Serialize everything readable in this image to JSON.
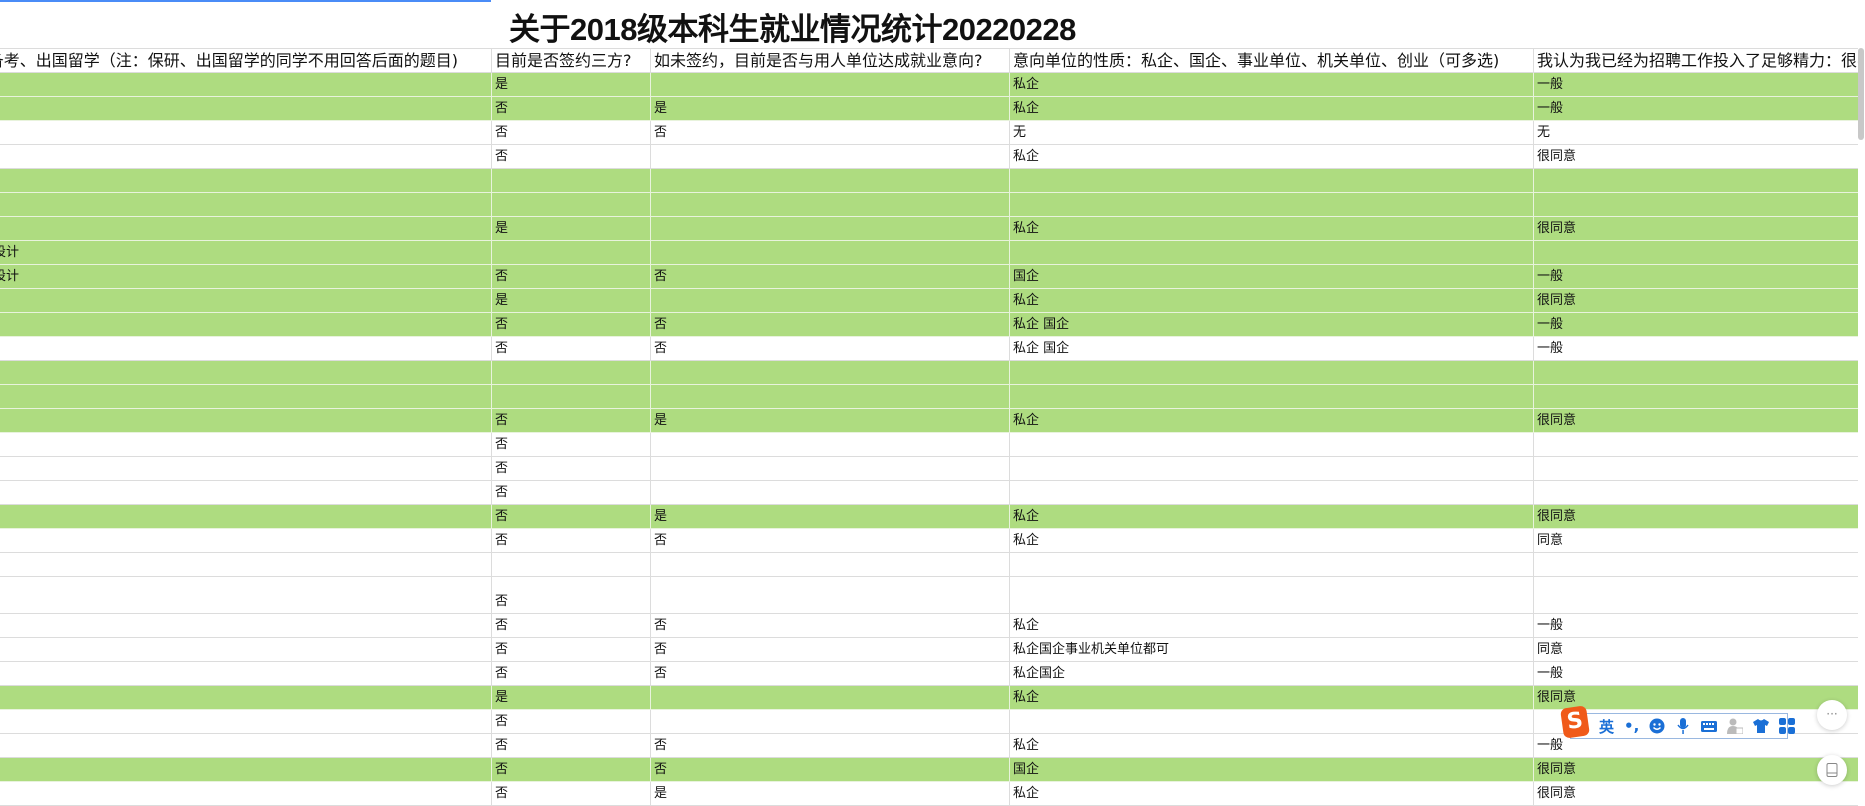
{
  "title": "关于2018级本科生就业情况统计20220228",
  "colors": {
    "highlight_row": "#aedc80",
    "grid_line": "#dcdcdc",
    "ime_blue": "#1a6fd6",
    "ime_logo": "#f05a1a"
  },
  "columns": [
    "备考、出国留学（注：保研、出国留学的同学不用回答后面的题目)",
    "目前是否签约三方?",
    "如未签约，目前是否与用人单位达成就业意向?",
    "意向单位的性质：私企、国企、事业单位、机关单位、创业（可多选)",
    "我认为我已经为招聘工作投入了足够精力：很不同意"
  ],
  "rows": [
    {
      "green": true,
      "cells": [
        "",
        "是",
        "",
        "私企",
        "一般"
      ]
    },
    {
      "green": true,
      "cells": [
        "",
        "否",
        "是",
        "私企",
        "一般"
      ]
    },
    {
      "green": false,
      "cells": [
        "",
        "否",
        "否",
        "无",
        "无"
      ]
    },
    {
      "green": false,
      "cells": [
        "",
        "否",
        "",
        "私企",
        "很同意"
      ]
    },
    {
      "green": true,
      "cells": [
        "",
        "",
        "",
        "",
        ""
      ]
    },
    {
      "green": true,
      "cells": [
        "",
        "",
        "",
        "",
        ""
      ]
    },
    {
      "green": true,
      "cells": [
        "",
        "是",
        "",
        "私企",
        "很同意"
      ]
    },
    {
      "green": true,
      "cells": [
        "设计",
        "",
        "",
        "",
        ""
      ]
    },
    {
      "green": true,
      "cells": [
        "设计",
        "否",
        "否",
        "国企",
        "一般"
      ]
    },
    {
      "green": true,
      "cells": [
        "",
        "是",
        "",
        "私企",
        "很同意"
      ]
    },
    {
      "green": true,
      "cells": [
        "",
        "否",
        "否",
        "私企 国企",
        "一般"
      ]
    },
    {
      "green": false,
      "cells": [
        "",
        "否",
        "否",
        "私企 国企",
        "一般"
      ]
    },
    {
      "green": true,
      "cells": [
        "",
        "",
        "",
        "",
        ""
      ]
    },
    {
      "green": true,
      "cells": [
        "",
        "",
        "",
        "",
        ""
      ]
    },
    {
      "green": true,
      "cells": [
        "",
        "否",
        "是",
        "私企",
        "很同意"
      ]
    },
    {
      "green": false,
      "cells": [
        "",
        "否",
        "",
        "",
        ""
      ]
    },
    {
      "green": false,
      "cells": [
        "",
        "否",
        "",
        "",
        ""
      ]
    },
    {
      "green": false,
      "cells": [
        "",
        "否",
        "",
        "",
        ""
      ]
    },
    {
      "green": true,
      "cells": [
        "",
        "否",
        "是",
        "私企",
        "很同意"
      ]
    },
    {
      "green": false,
      "cells": [
        "",
        "否",
        "否",
        "私企",
        "同意"
      ]
    },
    {
      "green": false,
      "cells": [
        "",
        "",
        "",
        "",
        ""
      ]
    },
    {
      "green": false,
      "tall": true,
      "cells": [
        "",
        "否",
        "",
        "",
        ""
      ]
    },
    {
      "green": false,
      "cells": [
        "",
        "否",
        "否",
        "私企",
        "一般"
      ]
    },
    {
      "green": false,
      "cells": [
        "",
        "否",
        "否",
        "私企国企事业机关单位都可",
        "同意"
      ]
    },
    {
      "green": false,
      "cells": [
        "",
        "否",
        "否",
        "私企国企",
        "一般"
      ]
    },
    {
      "green": true,
      "cells": [
        "",
        "是",
        "",
        "私企",
        "很同意"
      ]
    },
    {
      "green": false,
      "cells": [
        "",
        "否",
        "",
        "",
        ""
      ]
    },
    {
      "green": false,
      "cells": [
        "",
        "否",
        "否",
        "私企",
        "一般"
      ]
    },
    {
      "green": true,
      "cells": [
        "",
        "否",
        "否",
        "国企",
        "很同意"
      ]
    },
    {
      "green": false,
      "cells": [
        "",
        "否",
        "是",
        "私企",
        "很同意"
      ]
    }
  ],
  "ime": {
    "logo": "S",
    "lang": "英",
    "punct": "•,",
    "icons": [
      "emoji-icon",
      "microphone-icon",
      "keyboard-icon",
      "user-card-icon",
      "skin-shirt-icon",
      "apps-grid-icon"
    ]
  },
  "fab": {
    "more": "···"
  }
}
